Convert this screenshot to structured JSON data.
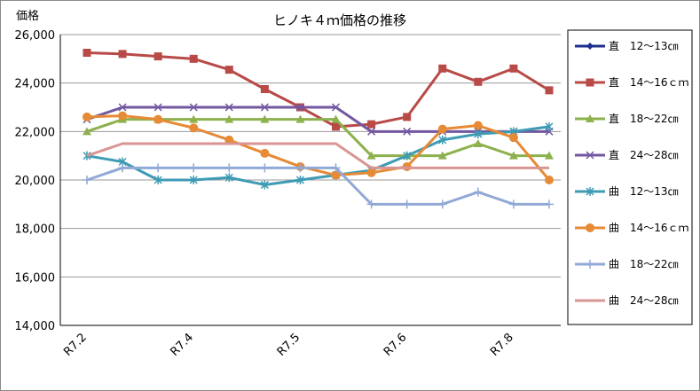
{
  "chart_data": {
    "type": "line",
    "title": "ヒノキ４ｍ価格の推移",
    "ylabel": "価格",
    "xlabel": "",
    "ylim": [
      14000,
      26000
    ],
    "yticks": [
      14000,
      16000,
      18000,
      20000,
      22000,
      24000,
      26000
    ],
    "ytick_labels": [
      "14,000",
      "16,000",
      "18,000",
      "20,000",
      "22,000",
      "24,000",
      "26,000"
    ],
    "xtick_labels": [
      "R7.2",
      "R7.4",
      "R7.5",
      "R7.6",
      "R7.8"
    ],
    "grid": "horizontal",
    "legend_position": "right",
    "series": [
      {
        "name": "直　12～13㎝",
        "color": "#1f2f8c",
        "marker": "diamond",
        "values": [
          null,
          null,
          null,
          null,
          null,
          null,
          null,
          null,
          null,
          null,
          null,
          null,
          null,
          null
        ]
      },
      {
        "name": "直　14～16ｃｍ",
        "color": "#b84a47",
        "marker": "square",
        "values": [
          25250,
          25200,
          25100,
          25000,
          24550,
          23750,
          23000,
          22200,
          22300,
          22600,
          24600,
          24050,
          24600,
          23700
        ]
      },
      {
        "name": "直　18～22㎝",
        "color": "#8db14d",
        "marker": "triangle",
        "values": [
          22000,
          22500,
          22500,
          22500,
          22500,
          22500,
          22500,
          22500,
          21000,
          21000,
          21000,
          21500,
          21000,
          21000
        ]
      },
      {
        "name": "直　24～28㎝",
        "color": "#7357a0",
        "marker": "x",
        "values": [
          22500,
          23000,
          23000,
          23000,
          23000,
          23000,
          23000,
          23000,
          22000,
          22000,
          22000,
          22000,
          22000,
          22000
        ]
      },
      {
        "name": "曲　12～13㎝",
        "color": "#3e9bb4",
        "marker": "star",
        "values": [
          21000,
          20750,
          20000,
          20000,
          20100,
          19800,
          20000,
          20200,
          20400,
          21000,
          21650,
          21900,
          22000,
          22200
        ]
      },
      {
        "name": "曲　14～16ｃｍ",
        "color": "#e68a35",
        "marker": "circle",
        "values": [
          22600,
          22650,
          22500,
          22150,
          21650,
          21100,
          20550,
          20200,
          20300,
          20550,
          22100,
          22250,
          21750,
          20000
        ]
      },
      {
        "name": "曲　18～22㎝",
        "color": "#91a9d6",
        "marker": "plus",
        "values": [
          20000,
          20500,
          20500,
          20500,
          20500,
          20500,
          20500,
          20500,
          19000,
          19000,
          19000,
          19500,
          19000,
          19000
        ]
      },
      {
        "name": "曲　24～28㎝",
        "color": "#d99593",
        "marker": "none",
        "values": [
          21000,
          21500,
          21500,
          21500,
          21500,
          21500,
          21500,
          21500,
          20500,
          20500,
          20500,
          20500,
          20500,
          20500
        ]
      }
    ]
  }
}
